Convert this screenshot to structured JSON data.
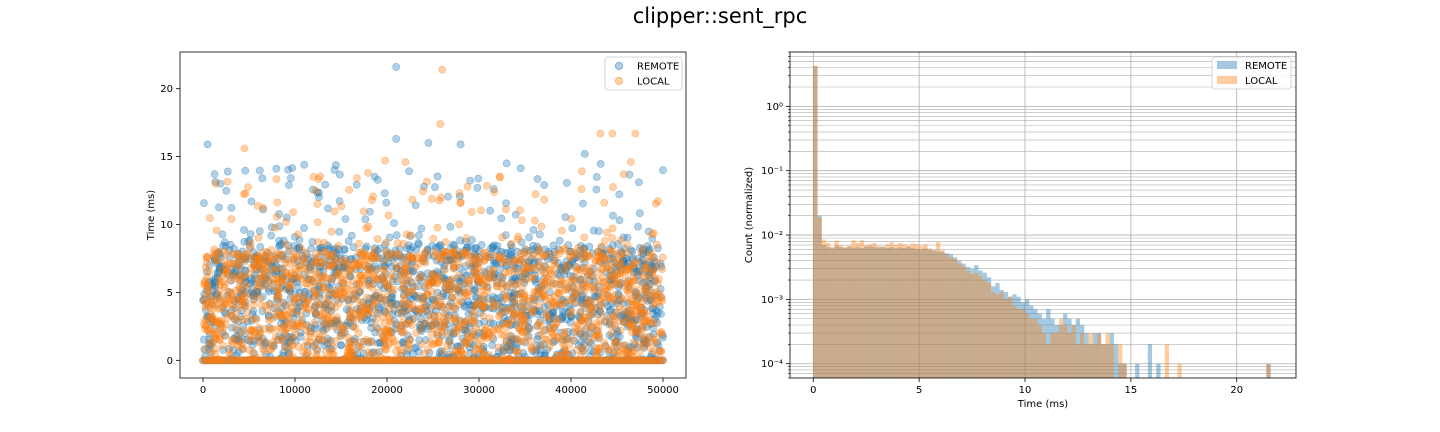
{
  "figure": {
    "title": "clipper::sent_rpc"
  },
  "colors": {
    "remote": "#1f77b4",
    "local": "#ff7f0e",
    "hist_remote": "#a7c8e2",
    "hist_local": "#ffc79a",
    "overlap": "#c0a98e"
  },
  "chart_data": [
    {
      "type": "scatter",
      "title": "",
      "xlabel": "",
      "ylabel": "Time (ms)",
      "xlim": [
        -2500,
        52500
      ],
      "ylim": [
        -1.3,
        22.7
      ],
      "xticks": [
        0,
        10000,
        20000,
        30000,
        40000,
        50000
      ],
      "xtick_labels": [
        "0",
        "10000",
        "20000",
        "30000",
        "40000",
        "50000"
      ],
      "yticks": [
        0,
        5,
        10,
        15,
        20
      ],
      "ytick_labels": [
        "0",
        "5",
        "10",
        "15",
        "20"
      ],
      "legend": {
        "placement": "top-right"
      },
      "series": [
        {
          "name": "REMOTE",
          "alpha": 0.35,
          "notable_points": [
            [
              21000,
              21.6
            ],
            [
              21000,
              16.3
            ],
            [
              24500,
              16.0
            ],
            [
              28000,
              15.9
            ],
            [
              41500,
              15.2
            ],
            [
              500,
              15.9
            ],
            [
              11000,
              14.4
            ],
            [
              33000,
              14.5
            ],
            [
              50000,
              14.0
            ]
          ],
          "cluster": {
            "x_range": [
              0,
              50000
            ],
            "dense_y_range": [
              0,
              8.5
            ],
            "sparse_y_range": [
              8.5,
              14.5
            ],
            "n_points": 50000,
            "baseline_y": 0
          }
        },
        {
          "name": "LOCAL",
          "alpha": 0.35,
          "notable_points": [
            [
              26000,
              21.4
            ],
            [
              25800,
              17.4
            ],
            [
              43200,
              16.7
            ],
            [
              44500,
              16.7
            ],
            [
              47000,
              16.7
            ],
            [
              4500,
              15.6
            ],
            [
              19800,
              14.7
            ],
            [
              22000,
              14.6
            ],
            [
              46500,
              14.6
            ]
          ],
          "cluster": {
            "x_range": [
              0,
              50000
            ],
            "dense_y_range": [
              0,
              8.0
            ],
            "sparse_y_range": [
              8.0,
              14.0
            ],
            "n_points": 50000,
            "baseline_y": 0
          }
        }
      ]
    },
    {
      "type": "bar",
      "subtype": "histogram",
      "title": "",
      "xlabel": "Time (ms)",
      "ylabel": "Count (normalized)",
      "xlim": [
        -1.1,
        22.8
      ],
      "ylim": [
        6e-05,
        7
      ],
      "yscale": "log",
      "grid": true,
      "xticks": [
        0,
        5,
        10,
        15,
        20
      ],
      "xtick_labels": [
        "0",
        "5",
        "10",
        "15",
        "20"
      ],
      "yticks": [
        0.0001,
        0.001,
        0.01,
        0.1,
        1
      ],
      "ytick_labels": [
        "10⁻⁴",
        "10⁻³",
        "10⁻²",
        "10⁻¹",
        "10⁰"
      ],
      "bin_width": 0.2,
      "legend": {
        "placement": "top-right"
      },
      "series": [
        {
          "name": "REMOTE",
          "alpha": 0.4,
          "bins": [
            [
              0.0,
              4.2
            ],
            [
              0.2,
              0.02
            ],
            [
              0.4,
              0.007
            ],
            [
              0.6,
              0.0065
            ],
            [
              0.8,
              0.0062
            ],
            [
              1.0,
              0.0068
            ],
            [
              1.2,
              0.0065
            ],
            [
              1.4,
              0.0063
            ],
            [
              1.6,
              0.0066
            ],
            [
              1.8,
              0.0064
            ],
            [
              2.0,
              0.0065
            ],
            [
              2.2,
              0.0063
            ],
            [
              2.4,
              0.0066
            ],
            [
              2.6,
              0.0067
            ],
            [
              2.8,
              0.0065
            ],
            [
              3.0,
              0.0064
            ],
            [
              3.2,
              0.0066
            ],
            [
              3.4,
              0.0063
            ],
            [
              3.6,
              0.0065
            ],
            [
              3.8,
              0.0062
            ],
            [
              4.0,
              0.0064
            ],
            [
              4.2,
              0.0063
            ],
            [
              4.4,
              0.0066
            ],
            [
              4.6,
              0.0063
            ],
            [
              4.8,
              0.0061
            ],
            [
              5.0,
              0.006
            ],
            [
              5.2,
              0.0062
            ],
            [
              5.4,
              0.0059
            ],
            [
              5.6,
              0.0058
            ],
            [
              5.8,
              0.0056
            ],
            [
              6.0,
              0.0055
            ],
            [
              6.2,
              0.0052
            ],
            [
              6.4,
              0.005
            ],
            [
              6.6,
              0.0045
            ],
            [
              6.8,
              0.004
            ],
            [
              7.0,
              0.0036
            ],
            [
              7.2,
              0.0032
            ],
            [
              7.4,
              0.003
            ],
            [
              7.6,
              0.0034
            ],
            [
              7.8,
              0.0028
            ],
            [
              8.0,
              0.0026
            ],
            [
              8.2,
              0.0022
            ],
            [
              8.4,
              0.0016
            ],
            [
              8.6,
              0.0018
            ],
            [
              8.8,
              0.0014
            ],
            [
              9.0,
              0.0013
            ],
            [
              9.2,
              0.0011
            ],
            [
              9.4,
              0.0012
            ],
            [
              9.6,
              0.0011
            ],
            [
              9.8,
              0.0009
            ],
            [
              10.0,
              0.001
            ],
            [
              10.2,
              0.0008
            ],
            [
              10.4,
              0.0007
            ],
            [
              10.6,
              0.0006
            ],
            [
              10.8,
              0.0005
            ],
            [
              11.0,
              0.0007
            ],
            [
              11.2,
              0.0005
            ],
            [
              11.4,
              0.0004
            ],
            [
              11.6,
              0.0004
            ],
            [
              11.8,
              0.0006
            ],
            [
              12.0,
              0.0005
            ],
            [
              12.2,
              0.0004
            ],
            [
              12.4,
              0.0005
            ],
            [
              12.6,
              0.0004
            ],
            [
              12.8,
              0.0003
            ],
            [
              13.0,
              0.0002
            ],
            [
              13.2,
              0.0003
            ],
            [
              13.4,
              0.0003
            ],
            [
              13.6,
              0.0002
            ],
            [
              13.8,
              0.0002
            ],
            [
              14.0,
              0.0003
            ],
            [
              14.2,
              0.0002
            ],
            [
              14.4,
              0.0001
            ],
            [
              14.6,
              0.0001
            ],
            [
              15.2,
              0.0001
            ],
            [
              15.8,
              0.0002
            ],
            [
              16.2,
              0.0001
            ],
            [
              21.4,
              0.0001
            ]
          ]
        },
        {
          "name": "LOCAL",
          "alpha": 0.4,
          "bins": [
            [
              0.0,
              4.3
            ],
            [
              0.2,
              0.019
            ],
            [
              0.4,
              0.0085
            ],
            [
              0.6,
              0.0075
            ],
            [
              0.8,
              0.0065
            ],
            [
              1.0,
              0.0082
            ],
            [
              1.2,
              0.007
            ],
            [
              1.4,
              0.0065
            ],
            [
              1.6,
              0.0068
            ],
            [
              1.8,
              0.0083
            ],
            [
              2.0,
              0.0075
            ],
            [
              2.2,
              0.0083
            ],
            [
              2.4,
              0.007
            ],
            [
              2.6,
              0.0072
            ],
            [
              2.8,
              0.0075
            ],
            [
              3.0,
              0.0068
            ],
            [
              3.2,
              0.0065
            ],
            [
              3.4,
              0.0072
            ],
            [
              3.6,
              0.0078
            ],
            [
              3.8,
              0.007
            ],
            [
              4.0,
              0.0075
            ],
            [
              4.2,
              0.0072
            ],
            [
              4.4,
              0.0068
            ],
            [
              4.6,
              0.0074
            ],
            [
              4.8,
              0.0072
            ],
            [
              5.0,
              0.0068
            ],
            [
              5.2,
              0.0072
            ],
            [
              5.4,
              0.0062
            ],
            [
              5.6,
              0.0058
            ],
            [
              5.8,
              0.0078
            ],
            [
              6.0,
              0.0058
            ],
            [
              6.2,
              0.005
            ],
            [
              6.4,
              0.0045
            ],
            [
              6.6,
              0.0042
            ],
            [
              6.8,
              0.0036
            ],
            [
              7.0,
              0.0033
            ],
            [
              7.2,
              0.0028
            ],
            [
              7.4,
              0.0025
            ],
            [
              7.6,
              0.0026
            ],
            [
              7.8,
              0.0023
            ],
            [
              8.0,
              0.002
            ],
            [
              8.2,
              0.0018
            ],
            [
              8.4,
              0.0013
            ],
            [
              8.6,
              0.0012
            ],
            [
              8.8,
              0.0013
            ],
            [
              9.0,
              0.001
            ],
            [
              9.2,
              0.0011
            ],
            [
              9.4,
              0.0008
            ],
            [
              9.6,
              0.0007
            ],
            [
              9.8,
              0.0007
            ],
            [
              10.0,
              0.0006
            ],
            [
              10.2,
              0.0005
            ],
            [
              10.4,
              0.0005
            ],
            [
              10.6,
              0.0004
            ],
            [
              10.8,
              0.0003
            ],
            [
              11.0,
              0.0002
            ],
            [
              11.2,
              0.0003
            ],
            [
              11.4,
              0.0003
            ],
            [
              11.6,
              0.0005
            ],
            [
              11.8,
              0.0004
            ],
            [
              12.0,
              0.0003
            ],
            [
              12.2,
              0.0004
            ],
            [
              12.4,
              0.0002
            ],
            [
              12.6,
              0.0003
            ],
            [
              12.8,
              0.0002
            ],
            [
              13.0,
              0.0003
            ],
            [
              13.2,
              0.0002
            ],
            [
              13.4,
              0.0003
            ],
            [
              13.6,
              0.0002
            ],
            [
              13.8,
              0.0003
            ],
            [
              14.0,
              0.0002
            ],
            [
              14.4,
              0.0002
            ],
            [
              14.6,
              0.0001
            ],
            [
              16.6,
              0.0002
            ],
            [
              17.2,
              0.0001
            ],
            [
              21.4,
              0.0001
            ]
          ]
        }
      ]
    }
  ]
}
